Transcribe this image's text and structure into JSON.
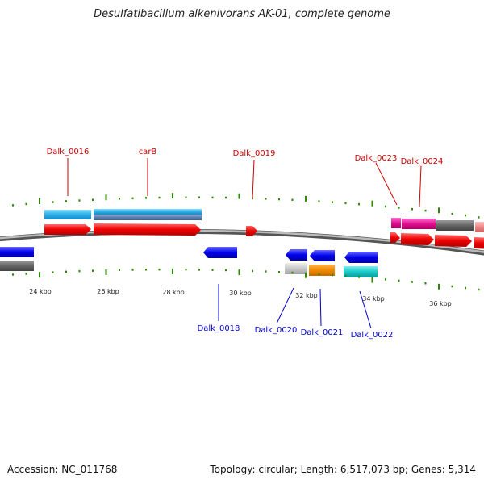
{
  "title": "Desulfatibacillum alkenivorans AK-01, complete genome",
  "footer": {
    "accession": "Accession: NC_011768",
    "summary": "Topology: circular; Length: 6,517,073 bp; Genes: 5,314"
  },
  "colors": {
    "forward_label": "#cc0000",
    "reverse_label": "#0000cc",
    "tick": "#2a8a00",
    "backbone": "#888888"
  },
  "scale_labels": [
    {
      "text": "24 kbp",
      "kbp": 24
    },
    {
      "text": "26 kbp",
      "kbp": 26
    },
    {
      "text": "28 kbp",
      "kbp": 28
    },
    {
      "text": "30 kbp",
      "kbp": 30
    },
    {
      "text": "32 kbp",
      "kbp": 32
    },
    {
      "text": "34 kbp",
      "kbp": 34
    },
    {
      "text": "36 kbp",
      "kbp": 36
    }
  ],
  "forward_labels": [
    "Dalk_0016",
    "carB",
    "Dalk_0019",
    "Dalk_0023",
    "Dalk_0024"
  ],
  "reverse_labels": [
    "Dalk_0018",
    "Dalk_0020",
    "Dalk_0021",
    "Dalk_0022"
  ]
}
